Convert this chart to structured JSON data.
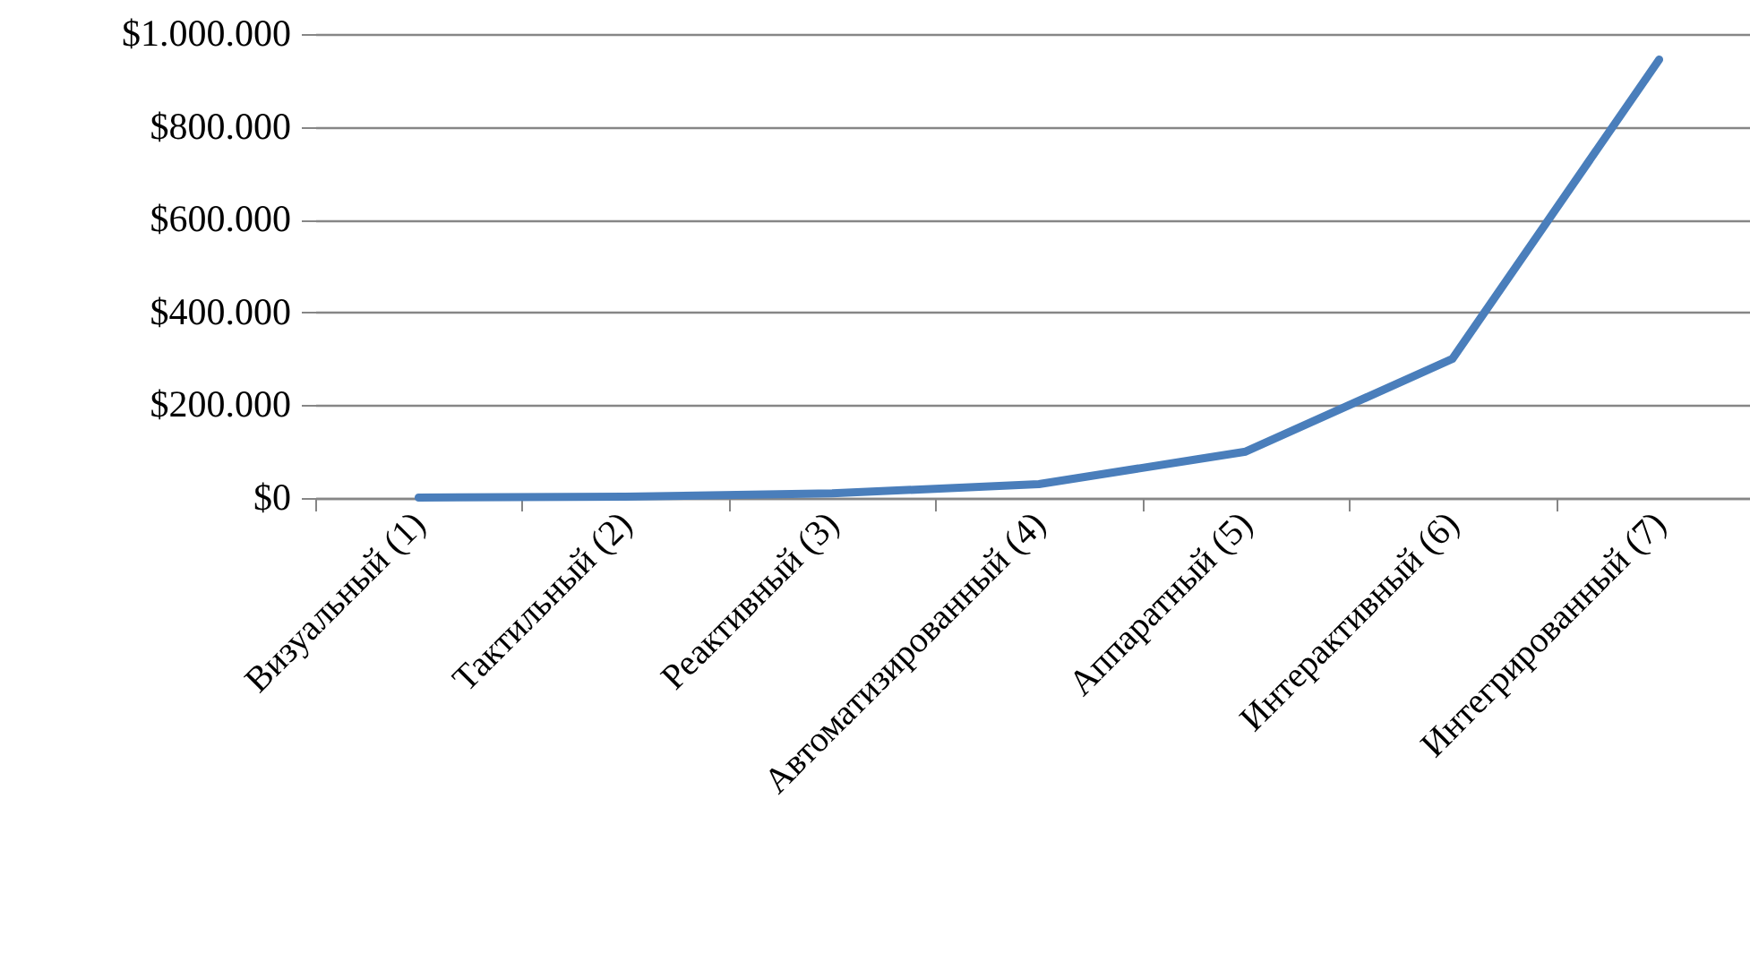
{
  "chart_data": {
    "type": "line",
    "categories": [
      "Визуальный (1)",
      "Тактильный (2)",
      "Реактивный (3)",
      "Автоматизированный (4)",
      "Аппаратный (5)",
      "Интерактивный (6)",
      "Интегрированный (7)"
    ],
    "series": [
      {
        "color": "#4a7ebb",
        "values": [
          1000,
          3000,
          10000,
          30000,
          100000,
          300000,
          945000
        ]
      }
    ],
    "ylim": [
      0,
      1000000
    ],
    "yticks": [
      {
        "value": 0,
        "label": "$0"
      },
      {
        "value": 200000,
        "label": "$200.000"
      },
      {
        "value": 400000,
        "label": "$400.000"
      },
      {
        "value": 600000,
        "label": "$600.000"
      },
      {
        "value": 800000,
        "label": "$800.000"
      },
      {
        "value": 1000000,
        "label": "$1.000.000"
      }
    ],
    "grid": "y",
    "line_style": "solid"
  }
}
